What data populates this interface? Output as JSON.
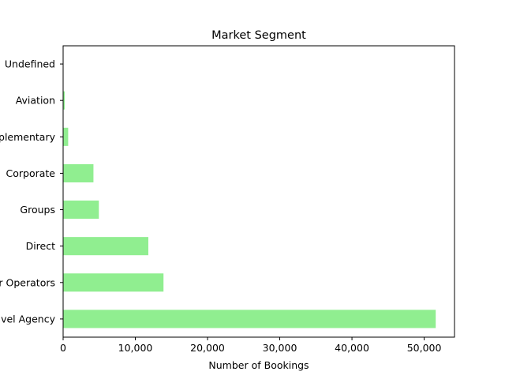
{
  "chart_data": {
    "type": "bar",
    "orientation": "horizontal",
    "title": "Market Segment",
    "xlabel": "Number of Bookings",
    "ylabel": "",
    "categories": [
      "Online Travel Agency",
      "Offline Tour Operators",
      "Direct",
      "Groups",
      "Corporate",
      "Complementary",
      "Aviation",
      "Undefined"
    ],
    "values": [
      51600,
      13900,
      11800,
      4950,
      4200,
      700,
      230,
      2
    ],
    "xlim": [
      0,
      54200
    ],
    "xticks": [
      0,
      10000,
      20000,
      30000,
      40000,
      50000
    ],
    "xtick_labels": [
      "0",
      "10,000",
      "20,000",
      "30,000",
      "40,000",
      "50,000"
    ],
    "bar_color": "#90ee90",
    "grid": false,
    "legend": false
  }
}
